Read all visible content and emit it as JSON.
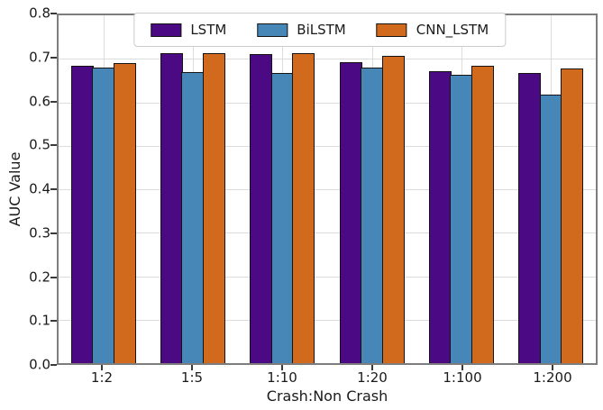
{
  "chart_data": {
    "type": "bar",
    "title": "",
    "xlabel": "Crash:Non Crash",
    "ylabel": "AUC Value",
    "categories": [
      "1:2",
      "1:5",
      "1:10",
      "1:20",
      "1:100",
      "1:200"
    ],
    "series": [
      {
        "name": "LSTM",
        "color": "#4B0A84",
        "values": [
          0.685,
          0.712,
          0.71,
          0.693,
          0.672,
          0.667
        ]
      },
      {
        "name": "BiLSTM",
        "color": "#4787B8",
        "values": [
          0.68,
          0.67,
          0.668,
          0.68,
          0.663,
          0.617
        ]
      },
      {
        "name": "CNN_LSTM",
        "color": "#D26A1E",
        "values": [
          0.69,
          0.712,
          0.712,
          0.707,
          0.685,
          0.678
        ]
      }
    ],
    "ylim": [
      0.0,
      0.8
    ],
    "yticks": [
      0.0,
      0.1,
      0.2,
      0.3,
      0.4,
      0.5,
      0.6,
      0.7,
      0.8
    ],
    "grid": true,
    "legend_position": "upper center",
    "bar_edge_color": "#141414",
    "spine_color": "#7d7d7d",
    "grid_color": "#dcdcdc"
  }
}
